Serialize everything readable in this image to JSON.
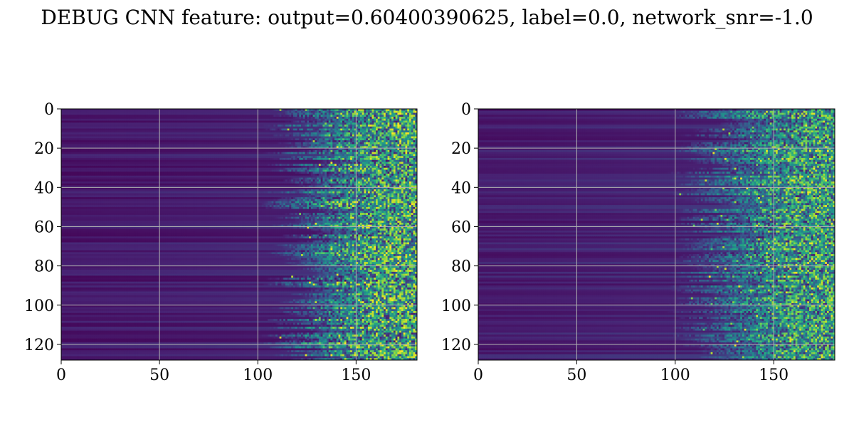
{
  "figure": {
    "title": "DEBUG CNN feature: output=0.60400390625, label=0.0, network_snr=-1.0"
  },
  "chart_data": [
    {
      "type": "heatmap",
      "colormap": "viridis",
      "value_range": [
        0,
        1
      ],
      "xlim": [
        0,
        181
      ],
      "ylim": [
        128,
        0
      ],
      "xticks": [
        "0",
        "50",
        "100",
        "150"
      ],
      "xtick_values": [
        0,
        50,
        100,
        150
      ],
      "yticks": [
        "0",
        "20",
        "40",
        "60",
        "80",
        "100",
        "120"
      ],
      "ytick_values": [
        0,
        20,
        40,
        60,
        80,
        100,
        120
      ],
      "grid": true,
      "pattern": {
        "rows": 128,
        "cols": 181,
        "baseline": 0.08,
        "activity_onset_col": 115,
        "peak_activity_cols": [
          135,
          181
        ],
        "max_value": 0.85
      }
    },
    {
      "type": "heatmap",
      "colormap": "viridis",
      "value_range": [
        0,
        1
      ],
      "xlim": [
        0,
        181
      ],
      "ylim": [
        128,
        0
      ],
      "xticks": [
        "0",
        "50",
        "100",
        "150"
      ],
      "xtick_values": [
        0,
        50,
        100,
        150
      ],
      "yticks": [
        "0",
        "20",
        "40",
        "60",
        "80",
        "100",
        "120"
      ],
      "ytick_values": [
        0,
        20,
        40,
        60,
        80,
        100,
        120
      ],
      "grid": true,
      "pattern": {
        "rows": 128,
        "cols": 181,
        "baseline": 0.1,
        "activity_onset_col": 110,
        "peak_activity_cols": [
          140,
          181
        ],
        "max_value": 0.8
      }
    }
  ]
}
